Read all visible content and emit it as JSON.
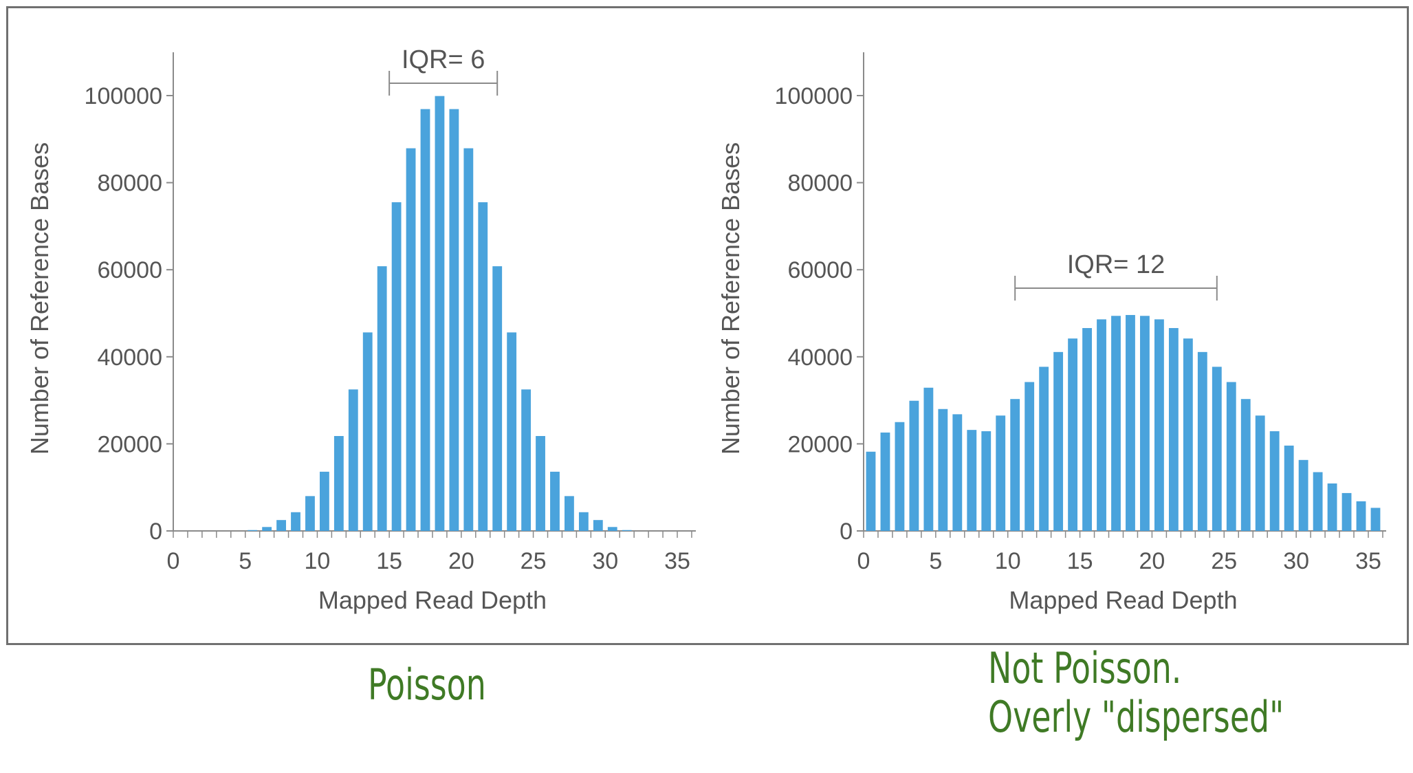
{
  "colors": {
    "bar": "#4aa3dc",
    "axis": "#8a8a8a",
    "text": "#555555",
    "caption": "#3f7a25",
    "frame": "#707070"
  },
  "charts": {
    "left": {
      "annotation": "IQR= 6",
      "caption": [
        "Poisson"
      ]
    },
    "right": {
      "annotation": "IQR= 12",
      "caption": [
        "Not Poisson.",
        "Overly \"dispersed\""
      ]
    }
  },
  "chart_data": [
    {
      "type": "bar",
      "title": "",
      "xlabel": "Mapped Read Depth",
      "ylabel": "Number of Reference Bases",
      "xlim": [
        0,
        36
      ],
      "ylim": [
        0,
        100000
      ],
      "xticks": [
        "0",
        "5",
        "10",
        "15",
        "20",
        "25",
        "30",
        "35"
      ],
      "yticks": [
        "0",
        "20000",
        "40000",
        "60000",
        "80000",
        "100000"
      ],
      "grid": false,
      "annotation": {
        "label": "IQR= 6",
        "x_range": [
          15,
          22.5
        ]
      },
      "x": [
        0,
        1,
        2,
        3,
        4,
        5,
        6,
        7,
        8,
        9,
        10,
        11,
        12,
        13,
        14,
        15,
        16,
        17,
        18,
        19,
        20,
        21,
        22,
        23,
        24,
        25,
        26,
        27,
        28,
        29,
        30,
        31,
        32,
        33,
        34,
        35
      ],
      "values": [
        0,
        0,
        0,
        0,
        0,
        200,
        900,
        2500,
        4300,
        8000,
        13600,
        21800,
        32500,
        45600,
        60800,
        75500,
        87900,
        96900,
        99900,
        96900,
        87900,
        75500,
        60800,
        45600,
        32500,
        21800,
        13600,
        8000,
        4300,
        2500,
        900,
        200,
        0,
        0,
        0,
        0
      ]
    },
    {
      "type": "bar",
      "title": "",
      "xlabel": "Mapped Read Depth",
      "ylabel": "Number of Reference Bases",
      "xlim": [
        0,
        36
      ],
      "ylim": [
        0,
        100000
      ],
      "xticks": [
        "0",
        "5",
        "10",
        "15",
        "20",
        "25",
        "30",
        "35"
      ],
      "yticks": [
        "0",
        "20000",
        "40000",
        "60000",
        "80000",
        "100000"
      ],
      "grid": false,
      "annotation": {
        "label": "IQR= 12",
        "x_range": [
          10.5,
          24.5
        ]
      },
      "x": [
        0,
        1,
        2,
        3,
        4,
        5,
        6,
        7,
        8,
        9,
        10,
        11,
        12,
        13,
        14,
        15,
        16,
        17,
        18,
        19,
        20,
        21,
        22,
        23,
        24,
        25,
        26,
        27,
        28,
        29,
        30,
        31,
        32,
        33,
        34,
        35
      ],
      "values": [
        18200,
        22600,
        25000,
        29900,
        32900,
        28000,
        26800,
        23200,
        22900,
        26500,
        30300,
        34200,
        37700,
        41100,
        44200,
        46600,
        48600,
        49400,
        49600,
        49400,
        48600,
        46600,
        44200,
        41100,
        37700,
        34200,
        30300,
        26500,
        22900,
        19600,
        16300,
        13500,
        10900,
        8700,
        6800,
        5300
      ]
    }
  ]
}
